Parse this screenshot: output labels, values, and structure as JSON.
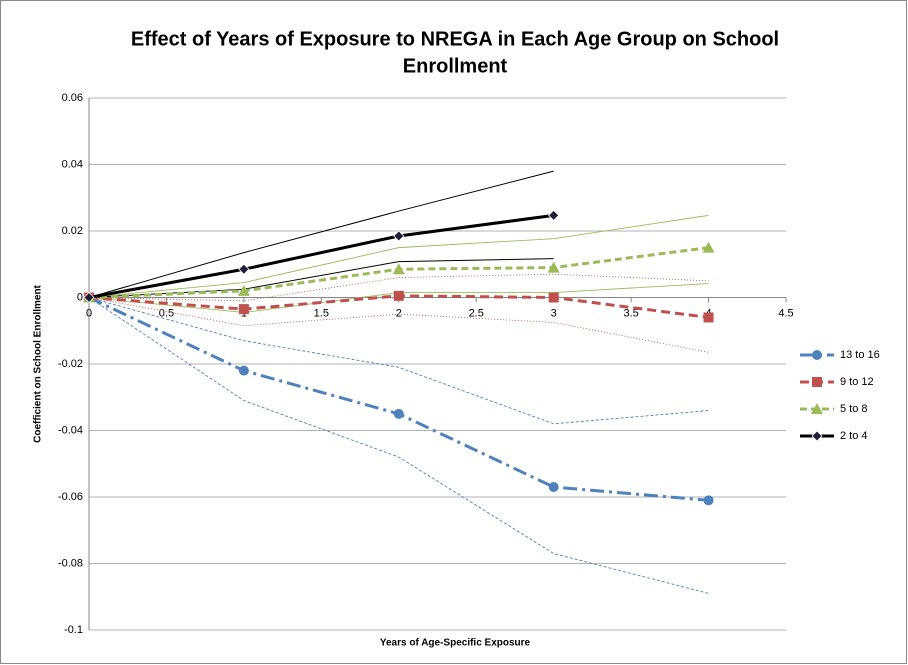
{
  "chart_data": {
    "type": "line",
    "title": [
      "Effect of Years of Exposure to NREGA in Each Age Group on School",
      "Enrollment"
    ],
    "x_label": "Years of Age-Specific Exposure",
    "y_label": "Coefficient on School Enrollment",
    "x": [
      0,
      1,
      2,
      3,
      4
    ],
    "xlim": [
      0,
      4.5
    ],
    "xticks": [
      0,
      0.5,
      1,
      1.5,
      2,
      2.5,
      3,
      3.5,
      4,
      4.5
    ],
    "ylim": [
      -0.1,
      0.06
    ],
    "yticks": [
      0.06,
      0.04,
      0.02,
      0,
      -0.02,
      -0.04,
      -0.06,
      -0.08,
      -0.1
    ],
    "grid": true,
    "legend": "right",
    "series": [
      {
        "name": "13 to 16",
        "color": "#4f81bd",
        "marker": "circle",
        "dash": "14 5 3 5",
        "ci_dash": "3 2",
        "values": [
          0,
          -0.022,
          -0.035,
          -0.057,
          -0.061
        ],
        "ci_upper": [
          0,
          -0.013,
          -0.021,
          -0.038,
          -0.034
        ],
        "ci_lower": [
          0,
          -0.031,
          -0.048,
          -0.077,
          -0.089
        ]
      },
      {
        "name": "9 to 12",
        "color": "#c0504d",
        "marker": "square",
        "dash": "9 5",
        "ci_dash": "1 2",
        "values": [
          0,
          -0.0035,
          0.0005,
          0,
          -0.006
        ],
        "ci_upper": [
          0,
          -0.001,
          0.006,
          0.007,
          0.005
        ],
        "ci_lower": [
          0,
          -0.0085,
          -0.005,
          -0.0075,
          -0.0165
        ]
      },
      {
        "name": "5 to 8",
        "color": "#9bbb59",
        "marker": "triangle",
        "dash": "7 4",
        "ci_dash": "none",
        "values": [
          0,
          0.002,
          0.0085,
          0.009,
          0.015
        ],
        "ci_upper": [
          0,
          0.0045,
          0.015,
          0.0177,
          0.0247
        ],
        "ci_lower": [
          0,
          -0.0045,
          0.0015,
          0.0015,
          0.0042
        ]
      },
      {
        "name": "2 to 4",
        "color": "#000000",
        "marker": "diamond",
        "dash": "none",
        "ci_dash": "none",
        "values": [
          0,
          0.0085,
          0.0185,
          0.0247,
          null
        ],
        "ci_upper": [
          0,
          0.0135,
          0.026,
          0.038,
          null
        ],
        "ci_lower": [
          0,
          0.0025,
          0.0108,
          0.0117,
          null
        ]
      }
    ]
  }
}
